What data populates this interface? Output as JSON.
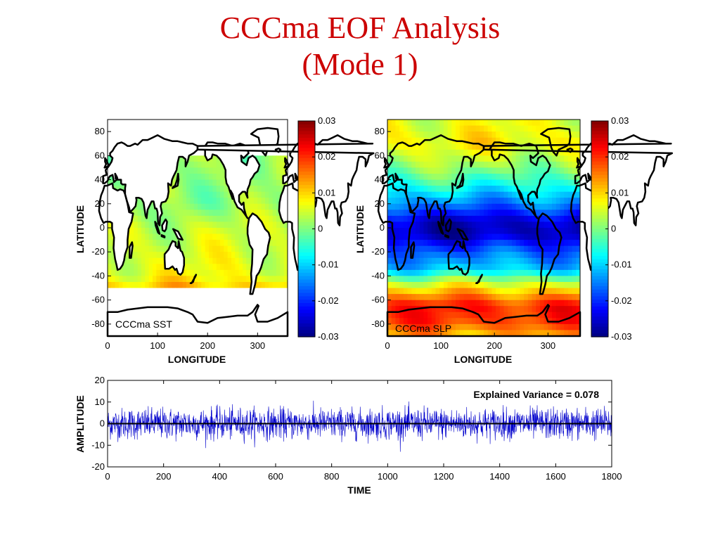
{
  "title": {
    "line1": "CCCma EOF Analysis",
    "line2": "(Mode 1)"
  },
  "colors": {
    "title": "#cc0000",
    "series": "#0000cc",
    "land_outline": "#000000"
  },
  "chart_data": [
    {
      "type": "heatmap",
      "label": "CCCma SST",
      "xlabel": "LONGITUDE",
      "ylabel": "LATITUDE",
      "xlim": [
        0,
        360
      ],
      "ylim": [
        -90,
        90
      ],
      "xticks": [
        0,
        100,
        200,
        300
      ],
      "yticks": [
        80,
        60,
        40,
        20,
        0,
        -20,
        -40,
        -60,
        -80
      ],
      "colorbar": {
        "range": [
          -0.03,
          0.03
        ],
        "ticks": [
          "0.03",
          "0.02",
          "0.01",
          "0",
          "-0.01",
          "-0.02",
          "-0.03"
        ],
        "colormap": "jet"
      },
      "land_mask": "white",
      "valid_lat_range": [
        -52,
        62
      ],
      "pattern": [
        {
          "lat": 62,
          "value": 0.001
        },
        {
          "lat": 40,
          "value": 0.002
        },
        {
          "lat": 20,
          "value": 0.001
        },
        {
          "lat": 0,
          "value": 0.004
        },
        {
          "lat": -20,
          "value": 0.005
        },
        {
          "lat": -40,
          "value": 0.007
        },
        {
          "lat": -52,
          "value": 0.012
        }
      ]
    },
    {
      "type": "heatmap",
      "label": "CCCma SLP",
      "xlabel": "LONGITUDE",
      "ylabel": "LATITUDE",
      "xlim": [
        0,
        360
      ],
      "ylim": [
        -90,
        90
      ],
      "xticks": [
        0,
        100,
        200,
        300
      ],
      "yticks": [
        80,
        60,
        40,
        20,
        0,
        -20,
        -40,
        -60,
        -80
      ],
      "colorbar": {
        "range": [
          -0.03,
          0.03
        ],
        "ticks": [
          "0.03",
          "0.02",
          "0.01",
          "0",
          "-0.01",
          "-0.02",
          "-0.03"
        ],
        "colormap": "jet"
      },
      "pattern": [
        {
          "lat": 90,
          "value": 0.006
        },
        {
          "lat": 70,
          "value": 0.008
        },
        {
          "lat": 50,
          "value": 0.001
        },
        {
          "lat": 35,
          "value": -0.006
        },
        {
          "lat": 20,
          "value": -0.015
        },
        {
          "lat": 5,
          "value": -0.026
        },
        {
          "lat": -5,
          "value": -0.027
        },
        {
          "lat": -20,
          "value": -0.017
        },
        {
          "lat": -35,
          "value": -0.01
        },
        {
          "lat": -45,
          "value": 0.004
        },
        {
          "lat": -55,
          "value": 0.013
        },
        {
          "lat": -65,
          "value": 0.021
        },
        {
          "lat": -78,
          "value": 0.019
        },
        {
          "lat": -90,
          "value": 0.012
        }
      ]
    },
    {
      "type": "line",
      "xlabel": "TIME",
      "ylabel": "AMPLITUDE",
      "xlim": [
        0,
        1800
      ],
      "ylim": [
        -20,
        20
      ],
      "xticks": [
        0,
        200,
        400,
        600,
        800,
        1000,
        1200,
        1400,
        1600,
        1800
      ],
      "yticks": [
        20,
        10,
        0,
        -10,
        -20
      ],
      "annotation": "Explained Variance = 0.078",
      "series": [
        {
          "n_points": 1800,
          "std": 3.6,
          "range": [
            -13,
            17
          ]
        }
      ]
    }
  ]
}
